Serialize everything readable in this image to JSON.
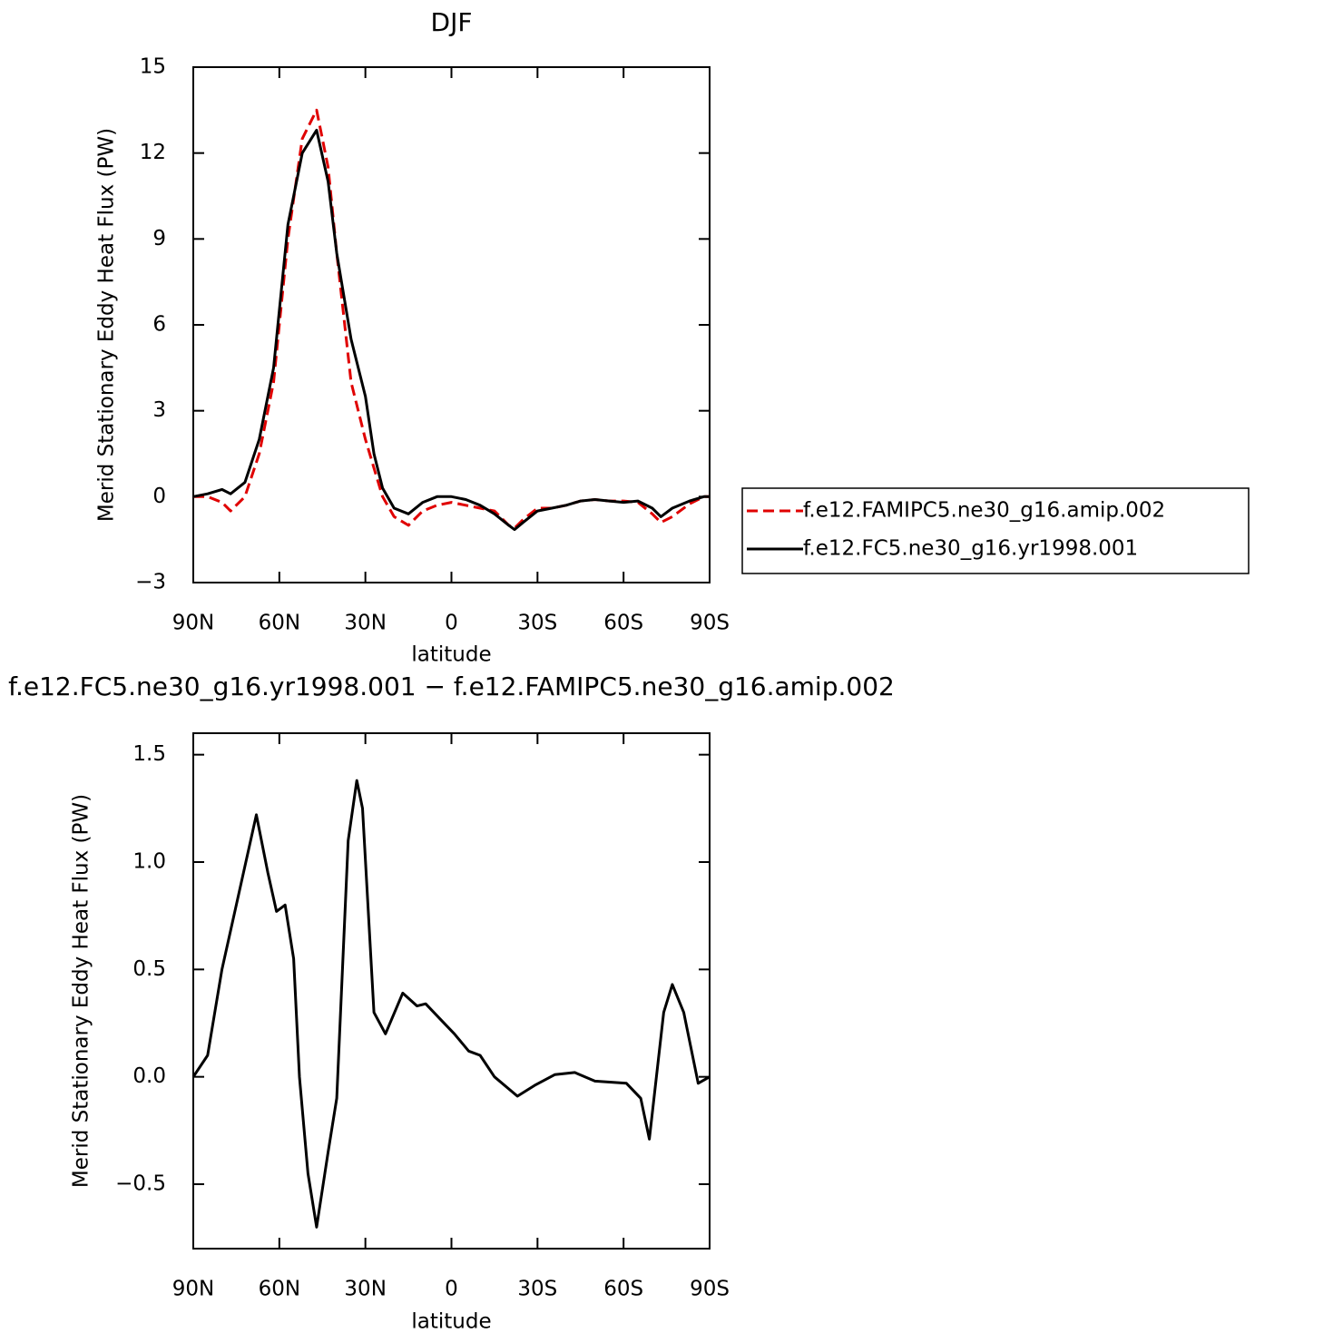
{
  "chart_data": [
    {
      "type": "line",
      "title": "DJF",
      "xlabel": "latitude",
      "ylabel": "Merid Stationary Eddy Heat Flux (PW)",
      "x": [
        90,
        85,
        80,
        77,
        72,
        67,
        62,
        57,
        52,
        47,
        43,
        40,
        35,
        30,
        27,
        24,
        20,
        15,
        10,
        5,
        0,
        -5,
        -10,
        -15,
        -20,
        -22,
        -25,
        -30,
        -35,
        -40,
        -45,
        -50,
        -55,
        -60,
        -65,
        -70,
        -73,
        -77,
        -83,
        -88,
        -90
      ],
      "series": [
        {
          "name": "f.e12.FAMIPC5.ne30_g16.amip.002",
          "color": "#e00000",
          "dash": true,
          "values": [
            0,
            0,
            -0.2,
            -0.5,
            0,
            1.5,
            4,
            9,
            12.5,
            13.5,
            11.5,
            8.5,
            4,
            2,
            1,
            0,
            -0.7,
            -1.0,
            -0.5,
            -0.3,
            -0.2,
            -0.3,
            -0.4,
            -0.5,
            -1.0,
            -1.1,
            -0.8,
            -0.4,
            -0.4,
            -0.3,
            -0.15,
            -0.1,
            -0.15,
            -0.15,
            -0.2,
            -0.6,
            -0.9,
            -0.7,
            -0.25,
            0,
            0
          ]
        },
        {
          "name": "f.e12.FC5.ne30_g16.yr1998.001",
          "color": "#000000",
          "dash": false,
          "values": [
            0,
            0.1,
            0.25,
            0.1,
            0.5,
            2,
            4.5,
            9.5,
            12,
            12.8,
            11,
            8.5,
            5.5,
            3.5,
            1.5,
            0.3,
            -0.4,
            -0.6,
            -0.2,
            0,
            0,
            -0.1,
            -0.3,
            -0.6,
            -1.0,
            -1.15,
            -0.9,
            -0.5,
            -0.4,
            -0.3,
            -0.15,
            -0.1,
            -0.15,
            -0.2,
            -0.15,
            -0.4,
            -0.7,
            -0.4,
            -0.15,
            0,
            0
          ]
        }
      ],
      "xlim": [
        90,
        -90
      ],
      "xticks": [
        {
          "value": 90,
          "label": "90N"
        },
        {
          "value": 60,
          "label": "60N"
        },
        {
          "value": 30,
          "label": "30N"
        },
        0,
        {
          "value": -30,
          "label": "30S"
        },
        {
          "value": -60,
          "label": "60S"
        },
        {
          "value": -90,
          "label": "90S"
        }
      ],
      "ylim": [
        -3,
        15
      ],
      "yticks": [
        {
          "value": -3,
          "label": "−3"
        },
        0,
        3,
        6,
        9,
        12,
        15
      ],
      "legend": "right"
    },
    {
      "type": "line",
      "title": "f.e12.FC5.ne30_g16.yr1998.001 − f.e12.FAMIPC5.ne30_g16.amip.002",
      "xlabel": "latitude",
      "ylabel": "Merid Stationary Eddy Heat Flux (PW)",
      "x": [
        90,
        85,
        80,
        75,
        68,
        64,
        61,
        58,
        55,
        53,
        50,
        47,
        43,
        40,
        36,
        33,
        31,
        27,
        23,
        17,
        12,
        9,
        4,
        -1,
        -6,
        -10,
        -15,
        -23,
        -29,
        -36,
        -43,
        -50,
        -61,
        -66,
        -69,
        -74,
        -77,
        -81,
        -86,
        -90
      ],
      "series": [
        {
          "name": "difference",
          "color": "#000000",
          "dash": false,
          "values": [
            0,
            0.1,
            0.5,
            0.8,
            1.22,
            0.95,
            0.77,
            0.8,
            0.55,
            0,
            -0.45,
            -0.7,
            -0.35,
            -0.1,
            1.1,
            1.38,
            1.25,
            0.3,
            0.2,
            0.39,
            0.33,
            0.34,
            0.27,
            0.2,
            0.12,
            0.1,
            0,
            -0.09,
            -0.04,
            0.01,
            0.02,
            -0.02,
            -0.03,
            -0.1,
            -0.29,
            0.3,
            0.43,
            0.3,
            -0.03,
            0
          ]
        }
      ],
      "xlim": [
        90,
        -90
      ],
      "xticks": [
        {
          "value": 90,
          "label": "90N"
        },
        {
          "value": 60,
          "label": "60N"
        },
        {
          "value": 30,
          "label": "30N"
        },
        0,
        {
          "value": -30,
          "label": "30S"
        },
        {
          "value": -60,
          "label": "60S"
        },
        {
          "value": -90,
          "label": "90S"
        }
      ],
      "ylim": [
        -0.8,
        1.6
      ],
      "yticks": [
        {
          "value": -0.5,
          "label": "−0.5"
        },
        {
          "value": 0,
          "label": "0.0"
        },
        0.5,
        {
          "value": 1,
          "label": "1.0"
        },
        1.5
      ]
    }
  ]
}
